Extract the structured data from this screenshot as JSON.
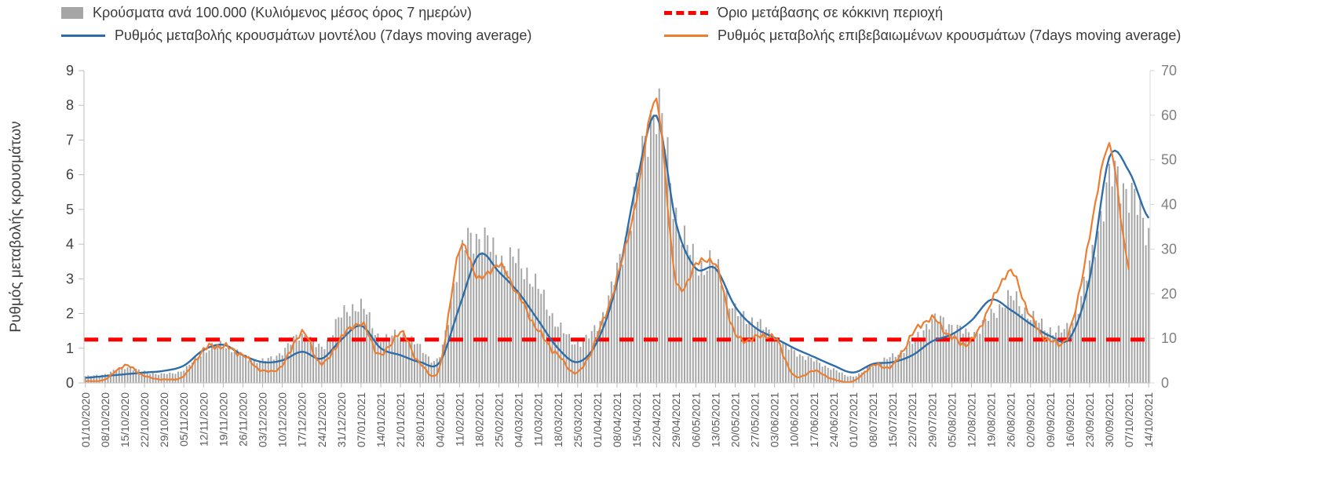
{
  "legend": {
    "bars_label": "Κρούσματα ανά 100.000 (Κυλιόμενος μέσος όρος 7 ημερών)",
    "threshold_label": "Όριο μετάβασης σε κόκκινη περιοχή",
    "model_label": "Ρυθμός μεταβολής κρουσμάτων μοντέλου (7days moving average)",
    "confirmed_label": "Ρυθμός μεταβολής επιβεβαιωμένων κρουσμάτων (7days moving average)"
  },
  "axes": {
    "left_title": "Ρυθμός μεταβολής κρουσμάτων",
    "left_ticks": [
      0,
      1,
      2,
      3,
      4,
      5,
      6,
      7,
      8,
      9
    ],
    "right_ticks": [
      0,
      10,
      20,
      30,
      40,
      50,
      60,
      70
    ]
  },
  "colors": {
    "bars": "#a6a6a6",
    "model": "#2f6da8",
    "confirmed": "#ed7d31",
    "threshold": "#ff0000",
    "axis_line": "#bfbfbf",
    "left_tick_text": "#404040",
    "right_tick_text": "#808080",
    "date_text": "#595959"
  },
  "chart_data": {
    "type": "combo",
    "series_types": {
      "bars": "bar",
      "model": "line",
      "confirmed": "line"
    },
    "x_weekly": [
      "01/10/2020",
      "08/10/2020",
      "15/10/2020",
      "22/10/2020",
      "29/10/2020",
      "05/11/2020",
      "12/11/2020",
      "19/11/2020",
      "26/11/2020",
      "03/12/2020",
      "10/12/2020",
      "17/12/2020",
      "24/12/2020",
      "31/12/2020",
      "07/01/2021",
      "14/01/2021",
      "21/01/2021",
      "28/01/2021",
      "04/02/2021",
      "11/02/2021",
      "18/02/2021",
      "25/02/2021",
      "04/03/2021",
      "11/03/2021",
      "18/03/2021",
      "25/03/2021",
      "01/04/2021",
      "08/04/2021",
      "15/04/2021",
      "22/04/2021",
      "29/04/2021",
      "06/05/2021",
      "13/05/2021",
      "20/05/2021",
      "27/05/2021",
      "03/06/2021",
      "10/06/2021",
      "17/06/2021",
      "24/06/2021",
      "01/07/2021",
      "08/07/2021",
      "15/07/2021",
      "22/07/2021",
      "29/07/2021",
      "05/08/2021",
      "12/08/2021",
      "19/08/2021",
      "26/08/2021",
      "02/09/2021",
      "09/09/2021",
      "16/09/2021",
      "23/09/2021",
      "30/09/2021",
      "07/10/2021",
      "14/10/2021"
    ],
    "bars_per_100k": [
      1.5,
      2,
      3.5,
      2.5,
      2,
      3,
      7,
      8.5,
      6,
      5,
      7,
      11,
      8,
      15,
      17,
      10,
      11,
      8,
      6,
      28,
      33,
      28,
      27,
      21,
      13,
      9,
      13,
      25,
      44,
      62,
      38,
      27,
      26,
      16,
      14,
      10,
      7,
      5,
      3,
      1.5,
      4,
      6,
      9,
      14,
      13,
      11,
      15,
      19,
      15,
      12,
      13,
      26,
      45,
      43,
      34
    ],
    "model_rate": [
      0.15,
      0.2,
      0.25,
      0.3,
      0.35,
      0.5,
      0.95,
      1.1,
      0.8,
      0.6,
      0.65,
      0.9,
      0.7,
      1.25,
      1.65,
      1.0,
      0.8,
      0.6,
      0.6,
      2.2,
      3.7,
      3.2,
      2.6,
      1.8,
      1.0,
      0.6,
      1.2,
      2.9,
      5.8,
      7.7,
      4.6,
      3.3,
      3.3,
      2.2,
      1.6,
      1.3,
      1.0,
      0.75,
      0.5,
      0.3,
      0.55,
      0.6,
      0.8,
      1.2,
      1.4,
      1.8,
      2.4,
      2.1,
      1.7,
      1.35,
      1.3,
      3.0,
      6.5,
      6.1,
      4.75
    ],
    "confirmed_rate": [
      0.05,
      0.1,
      0.5,
      0.2,
      0.1,
      0.2,
      0.95,
      1.05,
      0.8,
      0.35,
      0.5,
      1.45,
      0.55,
      1.3,
      1.7,
      0.8,
      1.45,
      0.55,
      0.45,
      3.85,
      3.0,
      3.4,
      2.5,
      1.5,
      0.8,
      0.3,
      1.35,
      3.0,
      5.3,
      8.1,
      2.9,
      3.4,
      3.4,
      1.4,
      1.3,
      1.3,
      0.2,
      0.35,
      0.1,
      0.05,
      0.5,
      0.5,
      1.4,
      1.85,
      1.3,
      1.2,
      2.3,
      3.2,
      1.9,
      1.2,
      1.5,
      4.2,
      6.8,
      3.3,
      null
    ],
    "threshold_left_axis": 1.25,
    "threshold_right_axis": 10,
    "left_ylim": [
      0,
      9
    ],
    "right_ylim": [
      0,
      70
    ],
    "legend_position": "top",
    "grid": false
  }
}
